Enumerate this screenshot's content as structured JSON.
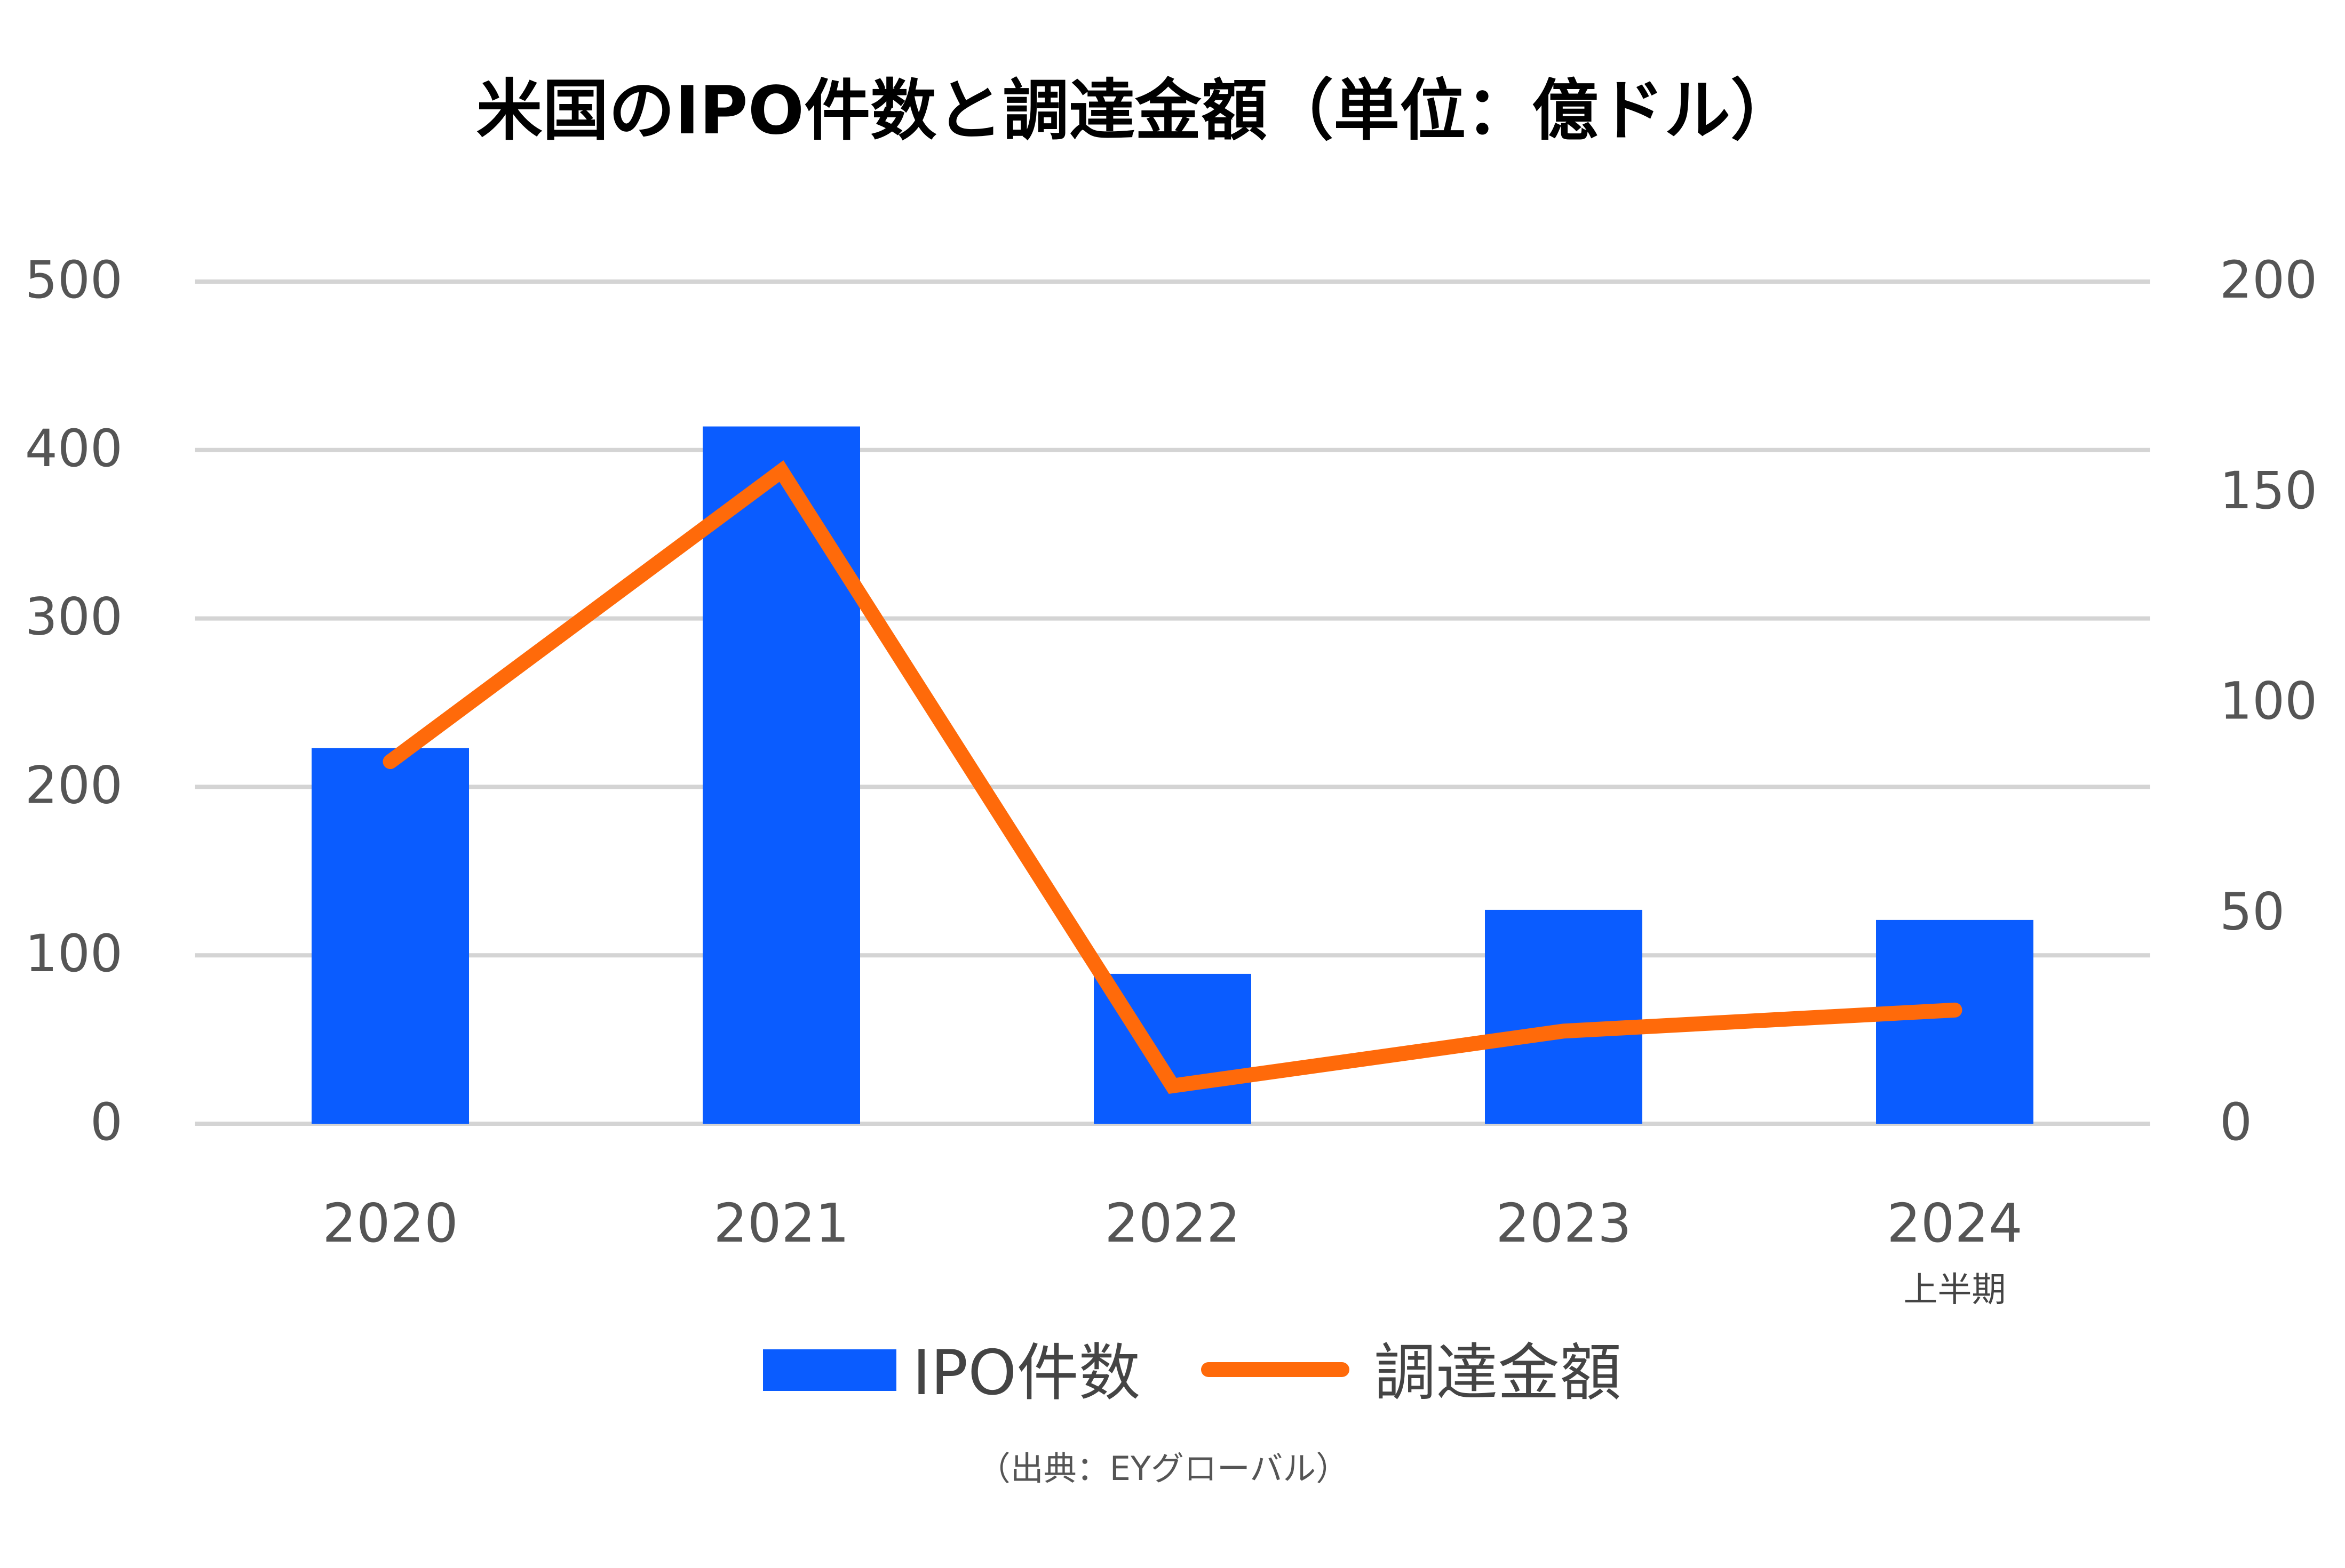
{
  "chart_data": {
    "type": "bar+line",
    "title": "米国のIPO件数と調達金額（単位：億ドル）",
    "categories": [
      "2020",
      "2021",
      "2022",
      "2023",
      "2024"
    ],
    "category_sublabels": [
      "",
      "",
      "",
      "",
      "上半期"
    ],
    "series": [
      {
        "name": "IPO件数",
        "type": "bar",
        "axis": "left",
        "color": "#0a5cff",
        "values": [
          223,
          414,
          89,
          127,
          121
        ]
      },
      {
        "name": "調達金額",
        "type": "line",
        "axis": "right",
        "color": "#ff6a0a",
        "values": [
          86,
          155,
          9,
          22,
          27
        ]
      }
    ],
    "y_left": {
      "min": 0,
      "max": 500,
      "ticks": [
        "0",
        "100",
        "200",
        "300",
        "400",
        "500"
      ]
    },
    "y_right": {
      "min": 0,
      "max": 200,
      "ticks": [
        "0",
        "50",
        "100",
        "150",
        "200"
      ]
    },
    "grid": true,
    "legend_position": "bottom",
    "source": "（出典：EYグローバル）"
  }
}
